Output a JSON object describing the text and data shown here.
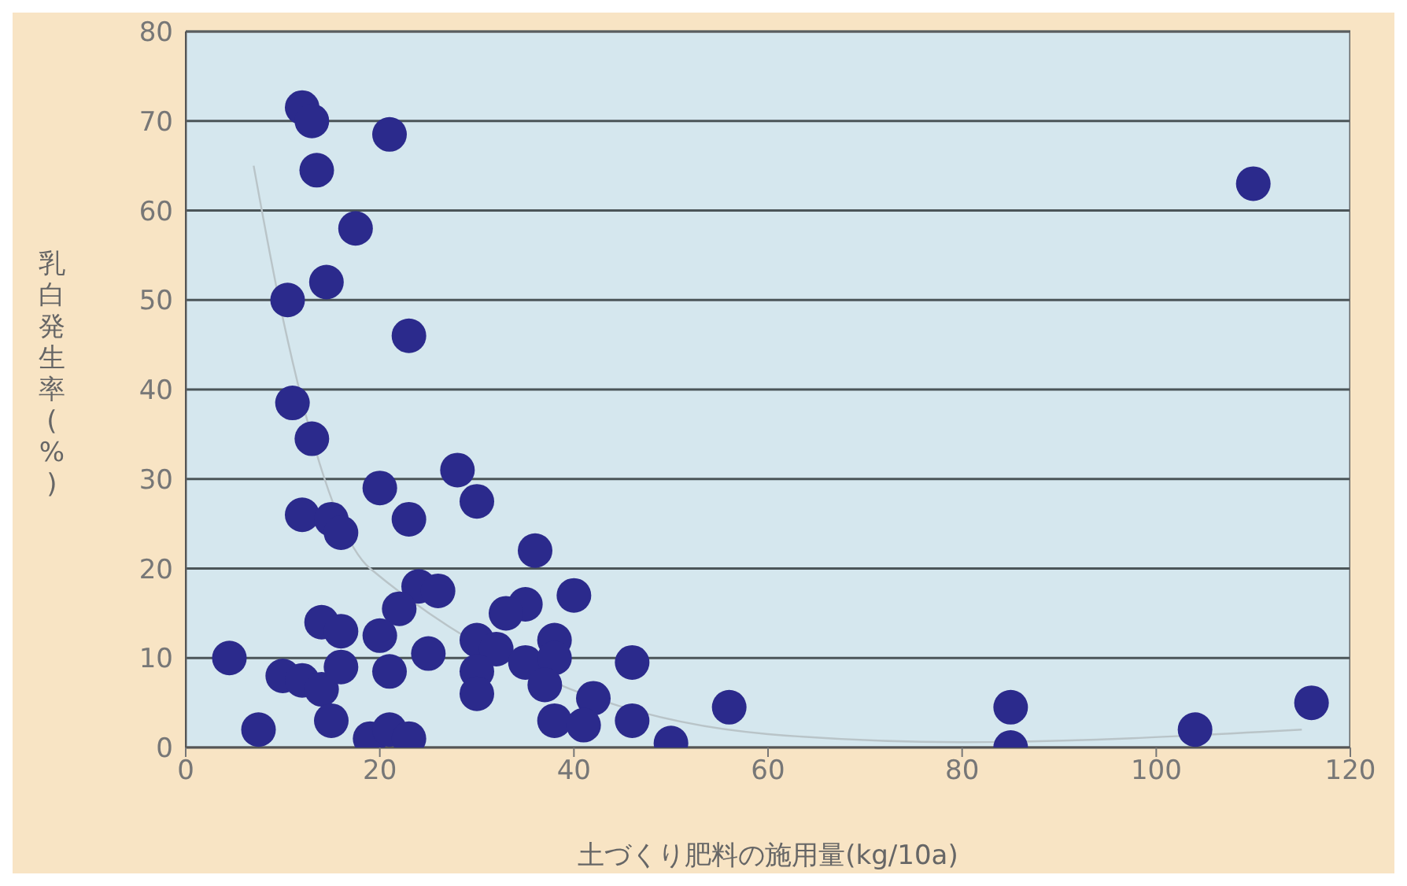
{
  "chart_data": {
    "type": "scatter",
    "xlabel": "土づくり肥料の施用量(kg/10a)",
    "ylabel": "乳白発生率(%)",
    "xlim": [
      0,
      120
    ],
    "xticks": [
      0,
      20,
      40,
      60,
      80,
      100,
      120
    ],
    "ylim": [
      0,
      80
    ],
    "yticks": [
      0,
      10,
      20,
      30,
      40,
      50,
      60,
      70,
      80
    ],
    "grid": "y",
    "series": [
      {
        "marker": "circle",
        "color": "#2b2a8c",
        "x": [
          12,
          13,
          21,
          13.5,
          17.5,
          10.5,
          14.5,
          23,
          11,
          13,
          20,
          28,
          30,
          12,
          15,
          16,
          23,
          36,
          24,
          26,
          22,
          35,
          40,
          33,
          14,
          16,
          20,
          30,
          32,
          38,
          4.5,
          10,
          12,
          14,
          16,
          21,
          25,
          30,
          35,
          38,
          30,
          37,
          42,
          46,
          7.5,
          15,
          19,
          21,
          23,
          38,
          41,
          46,
          50,
          56,
          85,
          85,
          104,
          110,
          116
        ],
        "values": [
          71.5,
          70,
          68.5,
          64.5,
          58,
          50,
          52,
          46,
          38.5,
          34.5,
          29,
          31,
          27.5,
          26,
          25.5,
          24,
          25.5,
          22,
          18,
          17.5,
          15.5,
          16,
          17,
          15,
          14,
          13,
          12.5,
          12,
          11,
          12,
          10,
          8,
          7.5,
          6.5,
          9,
          8.5,
          10.5,
          8.5,
          9.5,
          10,
          6,
          7,
          5.5,
          9.5,
          2,
          3,
          1,
          2,
          1,
          3,
          2.5,
          3,
          0.5,
          4.5,
          4.5,
          0,
          2,
          63,
          5
        ]
      },
      {
        "type": "line",
        "color": "#b9c4c8",
        "x": [
          7,
          10,
          19,
          60,
          80,
          115
        ],
        "values": [
          65,
          48,
          20,
          1.5,
          0.6,
          2
        ]
      }
    ]
  }
}
